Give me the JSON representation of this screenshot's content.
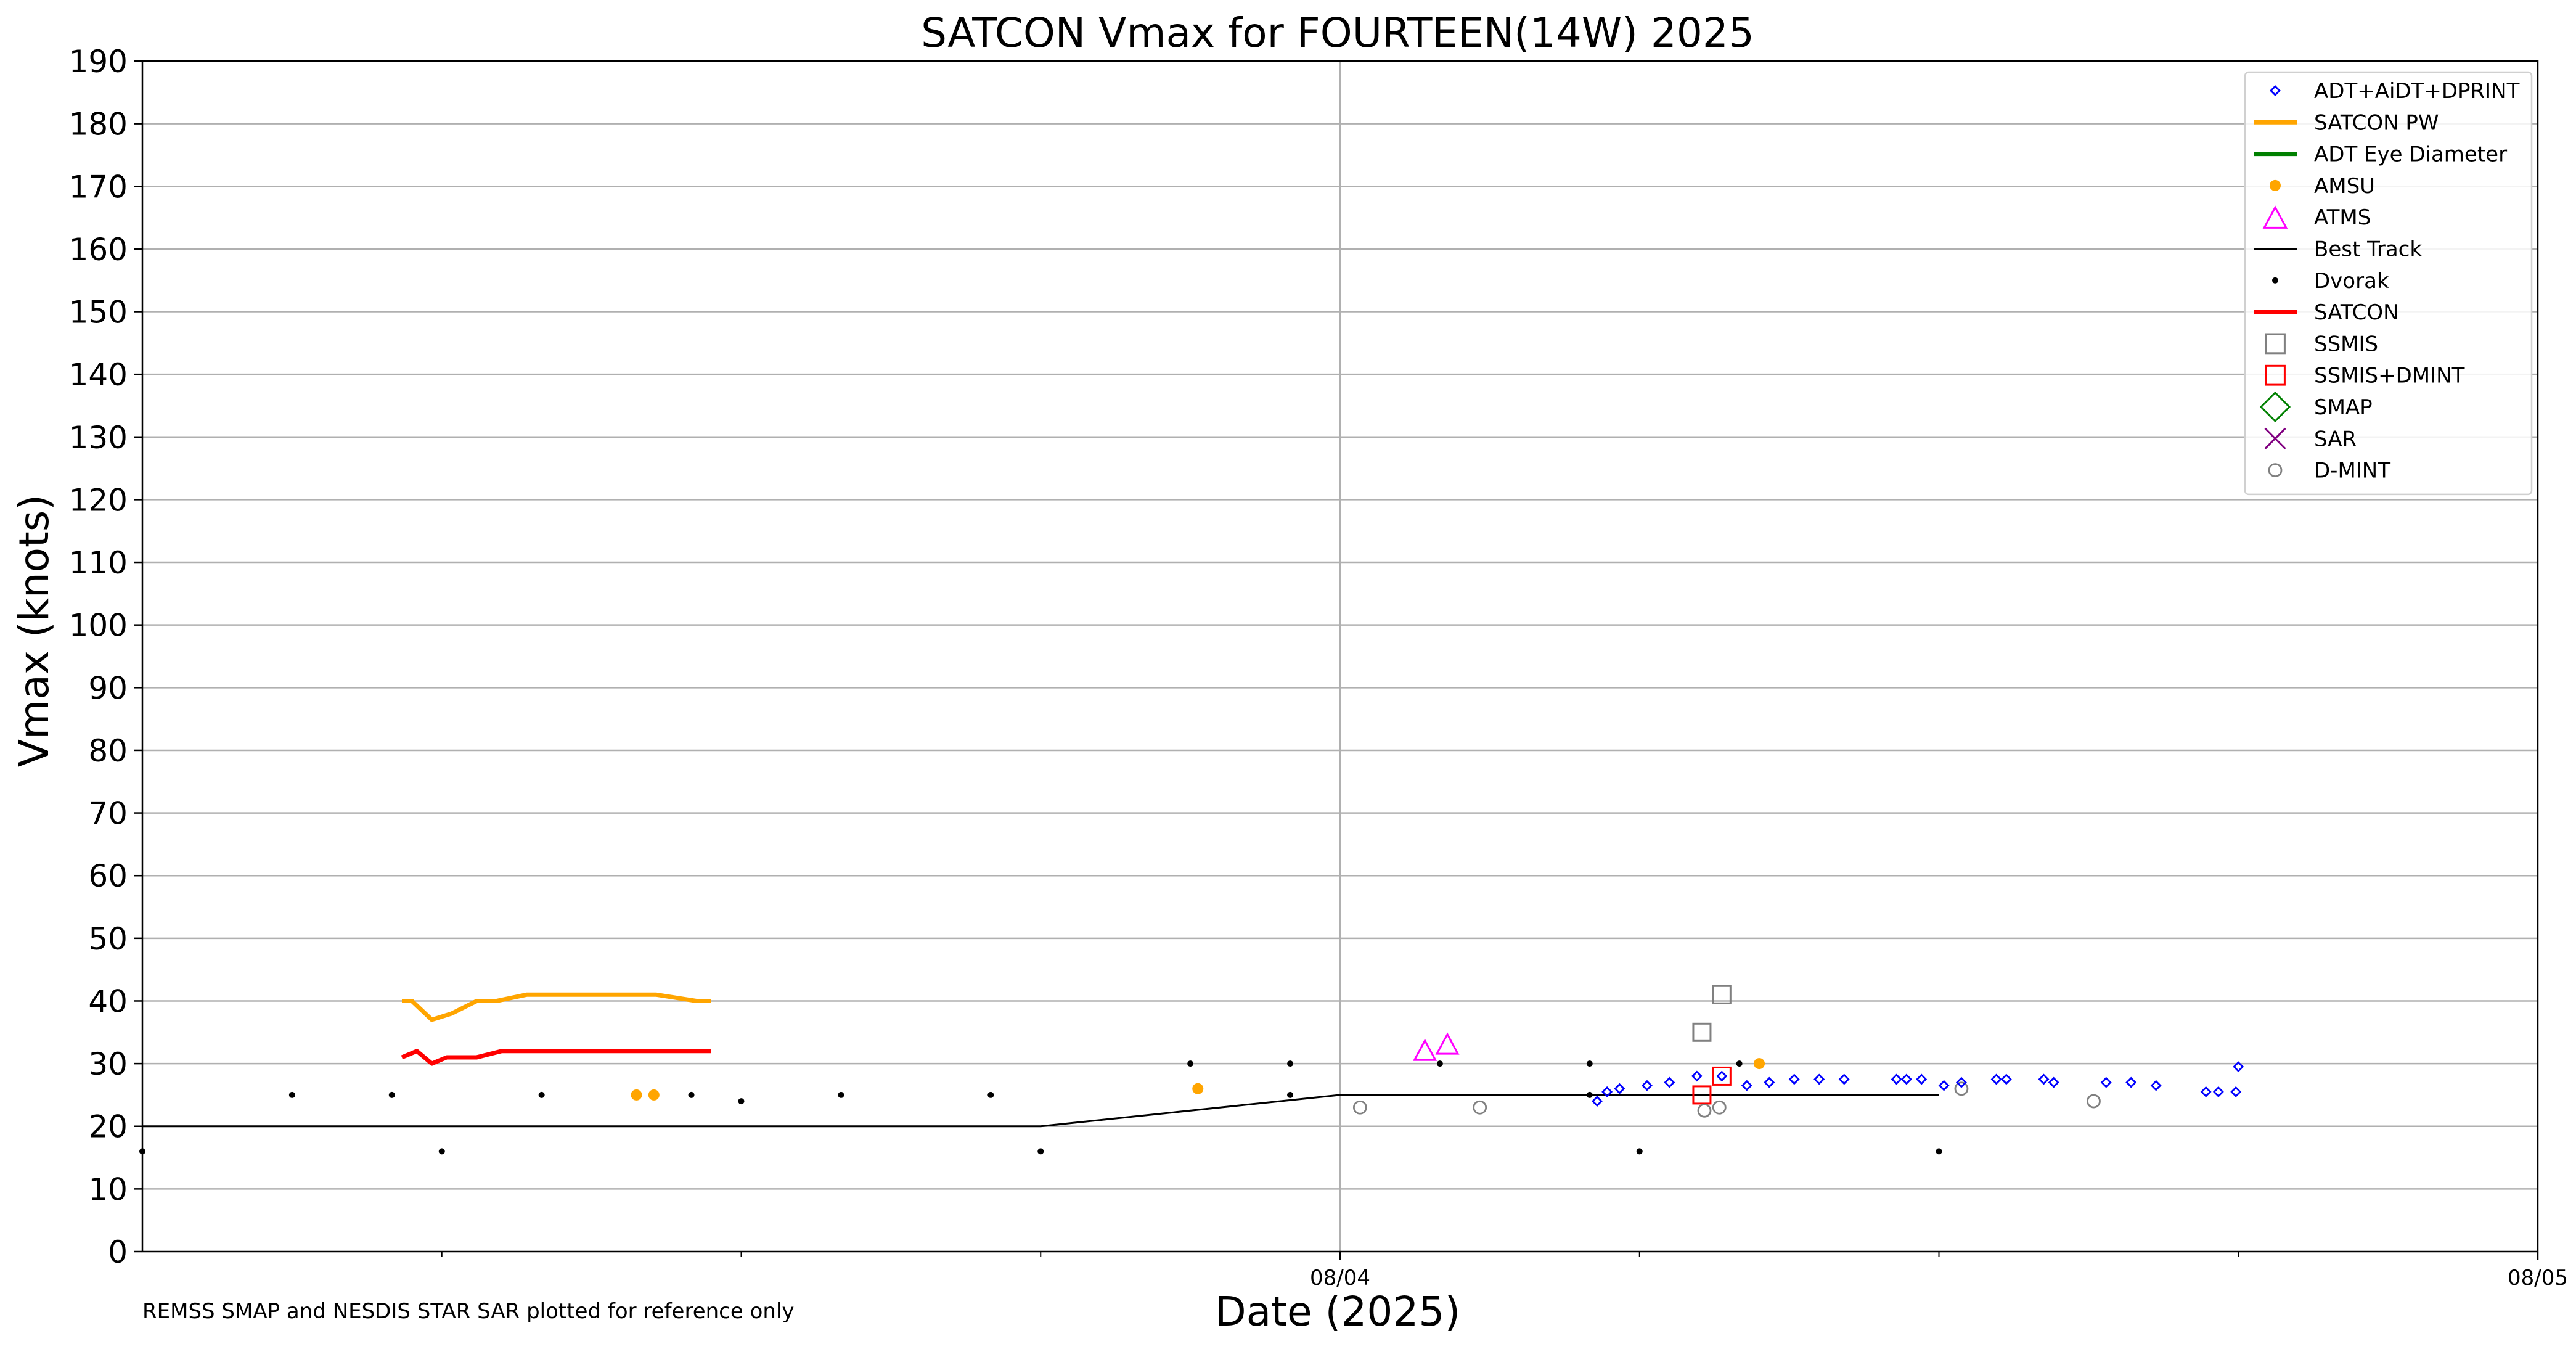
{
  "chart_data": {
    "type": "scatter",
    "title": "SATCON Vmax for FOURTEEN(14W) 2025",
    "xlabel": "Date (2025)",
    "ylabel": "Vmax (knots)",
    "ylim": [
      0,
      190
    ],
    "yticks": [
      0,
      10,
      20,
      30,
      40,
      50,
      60,
      70,
      80,
      90,
      100,
      110,
      120,
      130,
      140,
      150,
      160,
      170,
      180,
      190
    ],
    "x_unit": "hours since 08/03 00:00",
    "xlim": [
      0,
      48
    ],
    "xticks": [
      {
        "x": 24,
        "label": "08/04"
      },
      {
        "x": 48,
        "label": "08/05"
      }
    ],
    "x_minor_ticks": [
      6,
      12,
      18,
      30,
      36,
      42
    ],
    "grid": true,
    "legend_position": "top-right",
    "note": "REMSS SMAP and NESDIS STAR SAR plotted for reference only",
    "legend": [
      {
        "label": "ADT+AiDT+DPRINT",
        "marker": "diamond",
        "color": "#0000ff"
      },
      {
        "label": "SATCON PW",
        "marker": "line",
        "color": "#ffa500"
      },
      {
        "label": "ADT Eye Diameter",
        "marker": "line",
        "color": "#008000"
      },
      {
        "label": "AMSU",
        "marker": "dot",
        "color": "#ffa500"
      },
      {
        "label": "ATMS",
        "marker": "triangle",
        "color": "#ff00ff"
      },
      {
        "label": "Best Track",
        "marker": "thinline",
        "color": "#000000"
      },
      {
        "label": "Dvorak",
        "marker": "smalldot",
        "color": "#000000"
      },
      {
        "label": "SATCON",
        "marker": "line",
        "color": "#ff0000"
      },
      {
        "label": "SSMIS",
        "marker": "square",
        "color": "#808080"
      },
      {
        "label": "SSMIS+DMINT",
        "marker": "square",
        "color": "#ff0000"
      },
      {
        "label": "SMAP",
        "marker": "bigdiamond",
        "color": "#008000"
      },
      {
        "label": "SAR",
        "marker": "x",
        "color": "#800080"
      },
      {
        "label": "D-MINT",
        "marker": "circle",
        "color": "#808080"
      }
    ],
    "series": [
      {
        "name": "Best Track",
        "kind": "line",
        "color": "#000000",
        "width": 3,
        "points": [
          [
            0,
            20
          ],
          [
            18,
            20
          ],
          [
            24,
            25
          ],
          [
            36,
            25
          ]
        ]
      },
      {
        "name": "SATCON PW",
        "kind": "line",
        "color": "#ffa500",
        "width": 7,
        "points": [
          [
            5.2,
            40
          ],
          [
            5.4,
            40
          ],
          [
            5.8,
            37
          ],
          [
            6.2,
            38
          ],
          [
            6.7,
            40
          ],
          [
            7.1,
            40
          ],
          [
            7.7,
            41
          ],
          [
            10.3,
            41
          ],
          [
            11.1,
            40
          ],
          [
            11.4,
            40
          ]
        ]
      },
      {
        "name": "SATCON",
        "kind": "line",
        "color": "#ff0000",
        "width": 7,
        "points": [
          [
            5.2,
            31
          ],
          [
            5.5,
            32
          ],
          [
            5.8,
            30
          ],
          [
            6.1,
            31
          ],
          [
            6.7,
            31
          ],
          [
            7.2,
            32
          ],
          [
            11.4,
            32
          ]
        ]
      },
      {
        "name": "Dvorak",
        "kind": "smalldot",
        "color": "#000000",
        "points": [
          [
            0,
            16
          ],
          [
            3,
            25
          ],
          [
            5,
            25
          ],
          [
            6,
            16
          ],
          [
            8,
            25
          ],
          [
            11,
            25
          ],
          [
            12,
            24
          ],
          [
            14,
            25
          ],
          [
            17,
            25
          ],
          [
            18,
            16
          ],
          [
            21,
            30
          ],
          [
            23,
            30
          ],
          [
            23,
            25
          ],
          [
            26,
            30
          ],
          [
            29,
            30
          ],
          [
            29,
            25
          ],
          [
            30,
            16
          ],
          [
            32,
            30
          ],
          [
            36,
            16
          ]
        ]
      },
      {
        "name": "AMSU",
        "kind": "dot",
        "color": "#ffa500",
        "points": [
          [
            9.9,
            25
          ],
          [
            10.25,
            25
          ],
          [
            21.15,
            26
          ],
          [
            32.4,
            30
          ]
        ]
      },
      {
        "name": "ATMS",
        "kind": "triangle",
        "color": "#ff00ff",
        "points": [
          [
            25.7,
            32
          ],
          [
            26.15,
            33
          ]
        ]
      },
      {
        "name": "SSMIS",
        "kind": "square",
        "color": "#808080",
        "points": [
          [
            31.25,
            35
          ],
          [
            31.65,
            41
          ]
        ]
      },
      {
        "name": "SSMIS+DMINT",
        "kind": "square",
        "color": "#ff0000",
        "points": [
          [
            31.25,
            25
          ],
          [
            31.65,
            28
          ]
        ]
      },
      {
        "name": "D-MINT",
        "kind": "circle",
        "color": "#808080",
        "points": [
          [
            24.4,
            23
          ],
          [
            26.8,
            23
          ],
          [
            31.3,
            22.5
          ],
          [
            31.6,
            23
          ],
          [
            36.45,
            26
          ],
          [
            39.1,
            24
          ]
        ]
      },
      {
        "name": "ADT+AiDT+DPRINT",
        "kind": "diamond",
        "color": "#0000ff",
        "points": [
          [
            29.15,
            24
          ],
          [
            29.35,
            25.5
          ],
          [
            29.6,
            26
          ],
          [
            30.15,
            26.5
          ],
          [
            30.6,
            27
          ],
          [
            31.15,
            28
          ],
          [
            31.65,
            28
          ],
          [
            32.15,
            26.5
          ],
          [
            32.6,
            27
          ],
          [
            33.1,
            27.5
          ],
          [
            33.6,
            27.5
          ],
          [
            34.1,
            27.5
          ],
          [
            35.15,
            27.5
          ],
          [
            35.35,
            27.5
          ],
          [
            35.65,
            27.5
          ],
          [
            36.1,
            26.5
          ],
          [
            36.45,
            27
          ],
          [
            37.15,
            27.5
          ],
          [
            37.35,
            27.5
          ],
          [
            38.1,
            27.5
          ],
          [
            38.3,
            27
          ],
          [
            39.35,
            27
          ],
          [
            39.85,
            27
          ],
          [
            40.35,
            26.5
          ],
          [
            41.35,
            25.5
          ],
          [
            41.6,
            25.5
          ],
          [
            41.95,
            25.5
          ],
          [
            42.0,
            29.5
          ]
        ]
      }
    ]
  }
}
